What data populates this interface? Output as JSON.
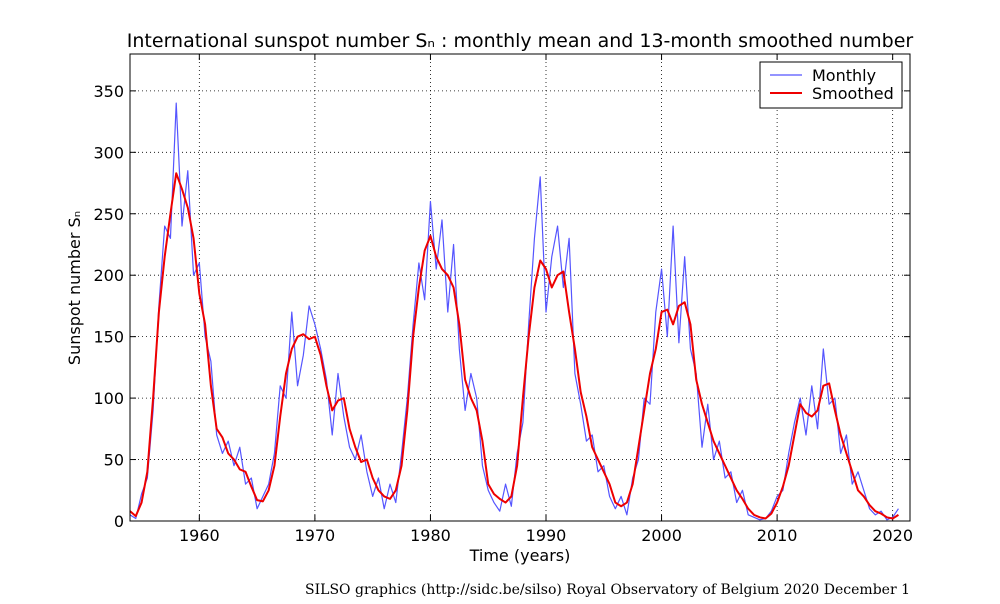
{
  "chart_data": {
    "type": "line",
    "title": "International sunspot number Sₙ : monthly mean and 13-month smoothed number",
    "x_label": "Time (years)",
    "y_label": "Sunspot number Sₙ",
    "footer": "SILSO graphics (http://sidc.be/silso)  Royal Observatory of Belgium  2020 December 1",
    "xlim": [
      1954,
      2021.5
    ],
    "ylim": [
      0,
      380
    ],
    "xticks": [
      1960,
      1970,
      1980,
      1990,
      2000,
      2010,
      2020
    ],
    "yticks": [
      0,
      50,
      100,
      150,
      200,
      250,
      300,
      350
    ],
    "grid": true,
    "legend": "upper right",
    "x": [
      1954,
      1954.5,
      1955,
      1955.5,
      1956,
      1956.5,
      1957,
      1957.5,
      1958,
      1958.5,
      1959,
      1959.5,
      1960,
      1960.5,
      1961,
      1961.5,
      1962,
      1962.5,
      1963,
      1963.5,
      1964,
      1964.5,
      1965,
      1965.5,
      1966,
      1966.5,
      1967,
      1967.5,
      1968,
      1968.5,
      1969,
      1969.5,
      1970,
      1970.5,
      1971,
      1971.5,
      1972,
      1972.5,
      1973,
      1973.5,
      1974,
      1974.5,
      1975,
      1975.5,
      1976,
      1976.5,
      1977,
      1977.5,
      1978,
      1978.5,
      1979,
      1979.5,
      1980,
      1980.5,
      1981,
      1981.5,
      1982,
      1982.5,
      1983,
      1983.5,
      1984,
      1984.5,
      1985,
      1985.5,
      1986,
      1986.5,
      1987,
      1987.5,
      1988,
      1988.5,
      1989,
      1989.5,
      1990,
      1990.5,
      1991,
      1991.5,
      1992,
      1992.5,
      1993,
      1993.5,
      1994,
      1994.5,
      1995,
      1995.5,
      1996,
      1996.5,
      1997,
      1997.5,
      1998,
      1998.5,
      1999,
      1999.5,
      2000,
      2000.5,
      2001,
      2001.5,
      2002,
      2002.5,
      2003,
      2003.5,
      2004,
      2004.5,
      2005,
      2005.5,
      2006,
      2006.5,
      2007,
      2007.5,
      2008,
      2008.5,
      2009,
      2009.5,
      2010,
      2010.5,
      2011,
      2011.5,
      2012,
      2012.5,
      2013,
      2013.5,
      2014,
      2014.5,
      2015,
      2015.5,
      2016,
      2016.5,
      2017,
      2017.5,
      2018,
      2018.5,
      2019,
      2019.5,
      2020,
      2020.5
    ],
    "series": [
      {
        "name": "Monthly",
        "color": "#5555ff",
        "width": 1.2,
        "values": [
          5,
          2,
          22,
          35,
          90,
          175,
          240,
          230,
          340,
          240,
          285,
          200,
          210,
          150,
          130,
          70,
          55,
          65,
          45,
          60,
          30,
          35,
          10,
          20,
          30,
          55,
          110,
          100,
          170,
          110,
          135,
          175,
          160,
          140,
          115,
          70,
          120,
          85,
          60,
          50,
          70,
          40,
          20,
          35,
          10,
          30,
          15,
          55,
          100,
          160,
          210,
          180,
          260,
          205,
          245,
          170,
          225,
          140,
          90,
          120,
          100,
          45,
          25,
          15,
          8,
          30,
          12,
          55,
          80,
          160,
          230,
          280,
          170,
          215,
          240,
          190,
          230,
          120,
          95,
          65,
          70,
          40,
          45,
          20,
          10,
          20,
          5,
          35,
          50,
          100,
          95,
          170,
          205,
          150,
          240,
          145,
          215,
          140,
          120,
          60,
          95,
          50,
          65,
          35,
          40,
          15,
          25,
          5,
          3,
          1,
          2,
          8,
          20,
          25,
          55,
          80,
          100,
          70,
          110,
          75,
          140,
          95,
          100,
          55,
          70,
          30,
          40,
          25,
          10,
          5,
          8,
          1,
          3,
          10
        ]
      },
      {
        "name": "Smoothed",
        "color": "#ee0000",
        "width": 2,
        "values": [
          8,
          4,
          15,
          40,
          100,
          170,
          215,
          250,
          283,
          270,
          255,
          230,
          185,
          160,
          110,
          75,
          68,
          55,
          50,
          42,
          40,
          28,
          17,
          16,
          25,
          45,
          85,
          120,
          140,
          150,
          152,
          148,
          150,
          135,
          110,
          90,
          98,
          100,
          75,
          60,
          48,
          50,
          35,
          25,
          20,
          18,
          25,
          45,
          90,
          150,
          190,
          220,
          232,
          215,
          205,
          200,
          190,
          160,
          115,
          100,
          90,
          65,
          30,
          22,
          18,
          15,
          20,
          45,
          100,
          150,
          190,
          212,
          205,
          190,
          200,
          203,
          170,
          140,
          105,
          85,
          60,
          50,
          40,
          30,
          15,
          12,
          15,
          30,
          60,
          90,
          120,
          140,
          170,
          172,
          160,
          175,
          178,
          160,
          115,
          95,
          80,
          65,
          55,
          45,
          35,
          25,
          18,
          10,
          5,
          3,
          2,
          6,
          15,
          28,
          45,
          70,
          95,
          88,
          85,
          90,
          110,
          112,
          90,
          70,
          55,
          40,
          25,
          20,
          13,
          8,
          6,
          3,
          2,
          5
        ]
      }
    ]
  }
}
